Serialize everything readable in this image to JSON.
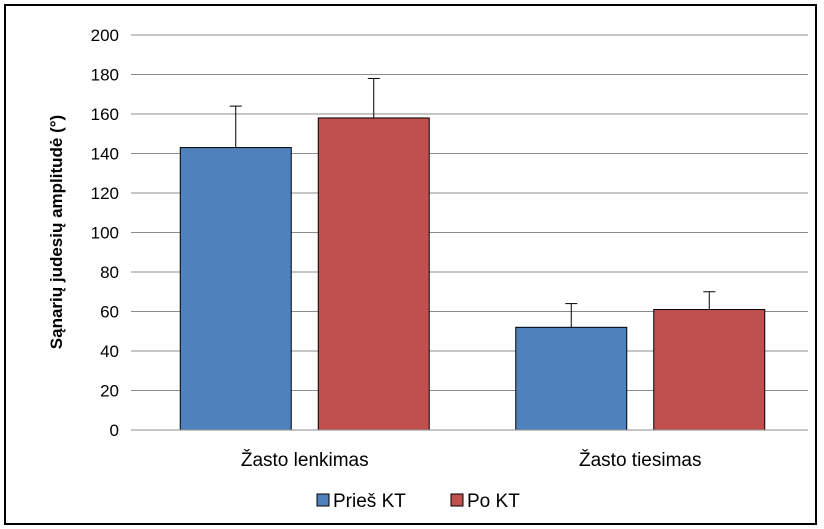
{
  "chart_data": {
    "type": "bar",
    "categories": [
      "Žasto lenkimas",
      "Žasto tiesimas"
    ],
    "series": [
      {
        "name": "Prieš KT",
        "color": "#4F81BD",
        "values": [
          143,
          52
        ],
        "errors": [
          21,
          12
        ]
      },
      {
        "name": "Po KT",
        "color": "#C0504D",
        "values": [
          158,
          61
        ],
        "errors": [
          20,
          9
        ]
      }
    ],
    "ylabel": "Sąnarių judesių amplitudė (°)",
    "xlabel": "",
    "ylim": [
      0,
      200
    ],
    "yticks": [
      0,
      20,
      40,
      60,
      80,
      100,
      120,
      140,
      160,
      180,
      200
    ],
    "grid": true,
    "legend_position": "bottom"
  }
}
